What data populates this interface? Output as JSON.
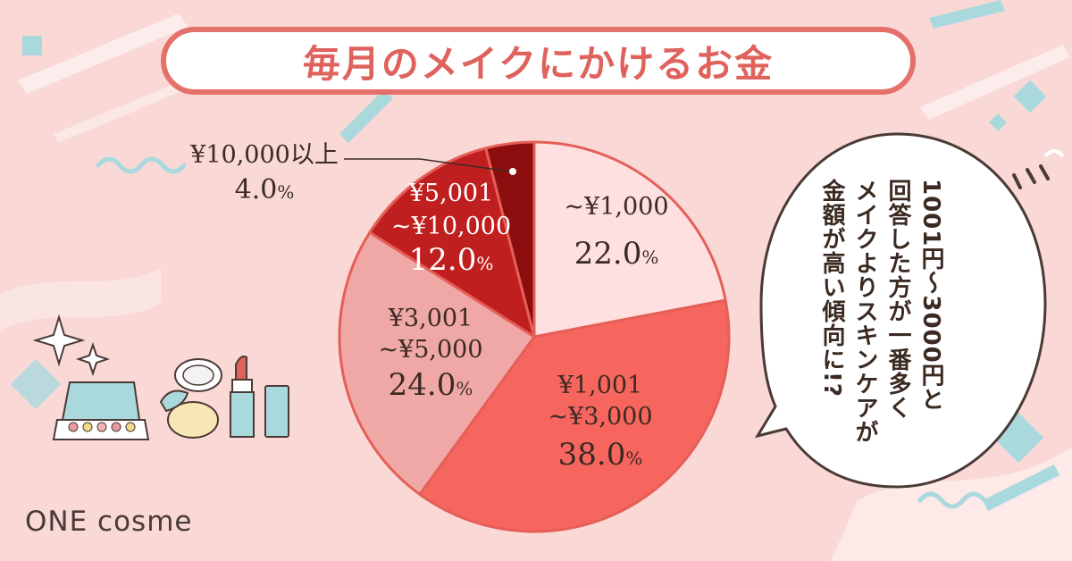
{
  "title": "毎月のメイクにかけるお金",
  "brand": "ONE cosme",
  "bubble": {
    "lines": [
      "1001円～3000円と",
      "回答した方が一番多く",
      "メイクよりスキンケアが",
      "金額が高い傾向に!?"
    ]
  },
  "chart_data": {
    "type": "pie",
    "slices": [
      {
        "label_lines": [
          "~¥1,000"
        ],
        "value": 22.0,
        "display": "22.0",
        "color": "#fde0df"
      },
      {
        "label_lines": [
          "¥1,001",
          "~¥3,000"
        ],
        "value": 38.0,
        "display": "38.0",
        "color": "#f6665f"
      },
      {
        "label_lines": [
          "¥3,001",
          "~¥5,000"
        ],
        "value": 24.0,
        "display": "24.0",
        "color": "#f0a8a6"
      },
      {
        "label_lines": [
          "¥5,001",
          "~¥10,000"
        ],
        "value": 12.0,
        "display": "12.0",
        "color": "#c01f1f"
      },
      {
        "label_lines": [
          "¥10,000以上"
        ],
        "value": 4.0,
        "display": "4.0",
        "color": "#8c0d0d"
      }
    ],
    "unit": "%",
    "start_angle_deg": 0,
    "direction": "clockwise",
    "outline_color": "#e55f58"
  }
}
